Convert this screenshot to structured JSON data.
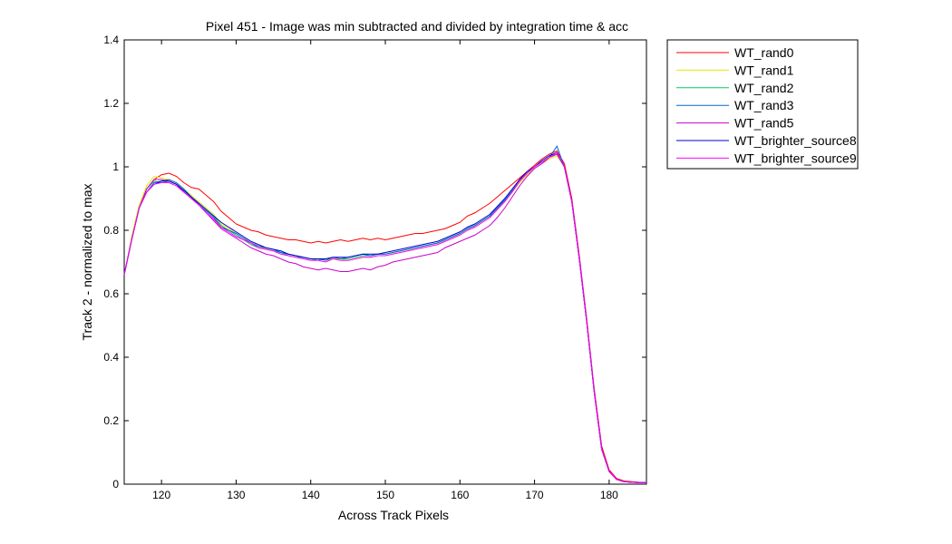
{
  "chart_data": {
    "type": "line",
    "title": "Pixel 451 - Image was min subtracted and divided by integration time & acc",
    "xlabel": "Across Track Pixels",
    "ylabel": "Track 2 - normalized to max",
    "xlim": [
      115,
      185
    ],
    "ylim": [
      0,
      1.4
    ],
    "xticks": [
      120,
      130,
      140,
      150,
      160,
      170,
      180
    ],
    "xtick_labels": [
      "120",
      "130",
      "140",
      "150",
      "160",
      "170",
      "180"
    ],
    "yticks": [
      0,
      0.2,
      0.4,
      0.6,
      0.8,
      1,
      1.2,
      1.4
    ],
    "ytick_labels": [
      "0",
      "0.2",
      "0.4",
      "0.6",
      "0.8",
      "1",
      "1.2",
      "1.4"
    ],
    "grid": false,
    "legend_position": "outside-top-right",
    "x": [
      115,
      116,
      117,
      118,
      119,
      120,
      121,
      122,
      123,
      124,
      125,
      126,
      127,
      128,
      129,
      130,
      131,
      132,
      133,
      134,
      135,
      136,
      137,
      138,
      139,
      140,
      141,
      142,
      143,
      144,
      145,
      146,
      147,
      148,
      149,
      150,
      151,
      152,
      153,
      154,
      155,
      156,
      157,
      158,
      159,
      160,
      161,
      162,
      163,
      164,
      165,
      166,
      167,
      168,
      169,
      170,
      171,
      172,
      173,
      174,
      175,
      176,
      177,
      178,
      179,
      180,
      181,
      182,
      183,
      184,
      185
    ],
    "series": [
      {
        "name": "WT_rand0",
        "color": "#ff0000",
        "values": [
          0.66,
          0.77,
          0.87,
          0.93,
          0.96,
          0.975,
          0.98,
          0.97,
          0.95,
          0.935,
          0.93,
          0.91,
          0.89,
          0.86,
          0.84,
          0.82,
          0.81,
          0.8,
          0.795,
          0.785,
          0.78,
          0.775,
          0.77,
          0.77,
          0.765,
          0.76,
          0.765,
          0.76,
          0.765,
          0.77,
          0.765,
          0.77,
          0.775,
          0.77,
          0.775,
          0.77,
          0.775,
          0.78,
          0.785,
          0.79,
          0.79,
          0.795,
          0.8,
          0.805,
          0.815,
          0.825,
          0.845,
          0.855,
          0.87,
          0.885,
          0.905,
          0.925,
          0.945,
          0.965,
          0.985,
          1.005,
          1.025,
          1.04,
          1.05,
          1.01,
          0.9,
          0.72,
          0.52,
          0.3,
          0.12,
          0.045,
          0.018,
          0.01,
          0.008,
          0.006,
          0.005
        ]
      },
      {
        "name": "WT_rand1",
        "color": "#e6e600",
        "values": [
          0.66,
          0.78,
          0.88,
          0.94,
          0.97,
          0.965,
          0.96,
          0.95,
          0.93,
          0.91,
          0.89,
          0.87,
          0.85,
          0.82,
          0.805,
          0.79,
          0.775,
          0.76,
          0.75,
          0.74,
          0.735,
          0.73,
          0.725,
          0.72,
          0.715,
          0.71,
          0.71,
          0.705,
          0.71,
          0.71,
          0.705,
          0.71,
          0.715,
          0.715,
          0.72,
          0.72,
          0.725,
          0.73,
          0.735,
          0.74,
          0.745,
          0.75,
          0.755,
          0.765,
          0.775,
          0.785,
          0.8,
          0.81,
          0.825,
          0.84,
          0.865,
          0.89,
          0.92,
          0.95,
          0.975,
          0.995,
          1.01,
          1.025,
          1.035,
          1.0,
          0.89,
          0.71,
          0.51,
          0.29,
          0.11,
          0.04,
          0.015,
          0.008,
          0.006,
          0.005,
          0.005
        ]
      },
      {
        "name": "WT_rand2",
        "color": "#00cc66",
        "values": [
          0.66,
          0.77,
          0.87,
          0.93,
          0.955,
          0.95,
          0.955,
          0.945,
          0.925,
          0.905,
          0.885,
          0.865,
          0.845,
          0.815,
          0.8,
          0.785,
          0.77,
          0.755,
          0.745,
          0.74,
          0.735,
          0.73,
          0.72,
          0.715,
          0.715,
          0.71,
          0.705,
          0.71,
          0.715,
          0.71,
          0.71,
          0.715,
          0.72,
          0.72,
          0.725,
          0.725,
          0.73,
          0.735,
          0.74,
          0.745,
          0.75,
          0.755,
          0.76,
          0.77,
          0.78,
          0.79,
          0.805,
          0.815,
          0.83,
          0.845,
          0.87,
          0.895,
          0.925,
          0.955,
          0.98,
          1.0,
          1.015,
          1.03,
          1.04,
          1.0,
          0.89,
          0.71,
          0.51,
          0.29,
          0.11,
          0.04,
          0.015,
          0.008,
          0.006,
          0.005,
          0.005
        ]
      },
      {
        "name": "WT_rand3",
        "color": "#0066cc",
        "values": [
          0.66,
          0.77,
          0.87,
          0.92,
          0.95,
          0.955,
          0.96,
          0.95,
          0.93,
          0.905,
          0.88,
          0.86,
          0.84,
          0.81,
          0.8,
          0.79,
          0.775,
          0.76,
          0.75,
          0.745,
          0.74,
          0.73,
          0.725,
          0.72,
          0.715,
          0.71,
          0.71,
          0.705,
          0.715,
          0.71,
          0.715,
          0.72,
          0.725,
          0.72,
          0.725,
          0.725,
          0.73,
          0.735,
          0.74,
          0.745,
          0.75,
          0.755,
          0.76,
          0.77,
          0.78,
          0.79,
          0.805,
          0.815,
          0.83,
          0.845,
          0.87,
          0.895,
          0.925,
          0.955,
          0.98,
          1.0,
          1.015,
          1.03,
          1.065,
          1.0,
          0.89,
          0.71,
          0.51,
          0.29,
          0.11,
          0.04,
          0.015,
          0.008,
          0.006,
          0.005,
          0.005
        ]
      },
      {
        "name": "WT_rand5",
        "color": "#cc00cc",
        "values": [
          0.66,
          0.77,
          0.87,
          0.93,
          0.96,
          0.96,
          0.955,
          0.945,
          0.92,
          0.9,
          0.88,
          0.855,
          0.83,
          0.805,
          0.79,
          0.775,
          0.76,
          0.745,
          0.735,
          0.725,
          0.72,
          0.71,
          0.7,
          0.695,
          0.685,
          0.68,
          0.675,
          0.68,
          0.675,
          0.67,
          0.67,
          0.675,
          0.68,
          0.675,
          0.685,
          0.69,
          0.7,
          0.705,
          0.71,
          0.715,
          0.72,
          0.725,
          0.73,
          0.745,
          0.755,
          0.765,
          0.775,
          0.785,
          0.8,
          0.815,
          0.84,
          0.87,
          0.905,
          0.94,
          0.97,
          0.995,
          1.01,
          1.03,
          1.04,
          1.0,
          0.89,
          0.71,
          0.51,
          0.29,
          0.11,
          0.04,
          0.015,
          0.008,
          0.006,
          0.005,
          0.005
        ]
      },
      {
        "name": "WT_brighter_source8",
        "color": "#0000cc",
        "values": [
          0.66,
          0.77,
          0.87,
          0.92,
          0.945,
          0.955,
          0.955,
          0.945,
          0.925,
          0.905,
          0.885,
          0.865,
          0.845,
          0.825,
          0.81,
          0.795,
          0.78,
          0.765,
          0.755,
          0.745,
          0.74,
          0.735,
          0.725,
          0.72,
          0.715,
          0.71,
          0.71,
          0.71,
          0.715,
          0.715,
          0.715,
          0.72,
          0.725,
          0.725,
          0.725,
          0.73,
          0.735,
          0.74,
          0.745,
          0.75,
          0.755,
          0.76,
          0.765,
          0.775,
          0.785,
          0.795,
          0.81,
          0.82,
          0.835,
          0.85,
          0.875,
          0.9,
          0.93,
          0.96,
          0.985,
          1.0,
          1.02,
          1.035,
          1.045,
          1.0,
          0.89,
          0.71,
          0.51,
          0.29,
          0.11,
          0.04,
          0.015,
          0.008,
          0.006,
          0.005,
          0.005
        ]
      },
      {
        "name": "WT_brighter_source9",
        "color": "#ff00ff",
        "values": [
          0.66,
          0.77,
          0.87,
          0.92,
          0.945,
          0.95,
          0.95,
          0.94,
          0.92,
          0.9,
          0.88,
          0.855,
          0.835,
          0.81,
          0.795,
          0.78,
          0.77,
          0.76,
          0.745,
          0.74,
          0.735,
          0.725,
          0.72,
          0.715,
          0.71,
          0.705,
          0.705,
          0.7,
          0.71,
          0.705,
          0.705,
          0.71,
          0.715,
          0.715,
          0.72,
          0.72,
          0.725,
          0.73,
          0.735,
          0.74,
          0.745,
          0.75,
          0.755,
          0.765,
          0.775,
          0.785,
          0.8,
          0.81,
          0.825,
          0.84,
          0.865,
          0.89,
          0.92,
          0.955,
          0.98,
          1.0,
          1.015,
          1.03,
          1.045,
          1.0,
          0.89,
          0.71,
          0.51,
          0.29,
          0.11,
          0.04,
          0.015,
          0.008,
          0.006,
          0.005,
          0.005
        ]
      }
    ]
  }
}
